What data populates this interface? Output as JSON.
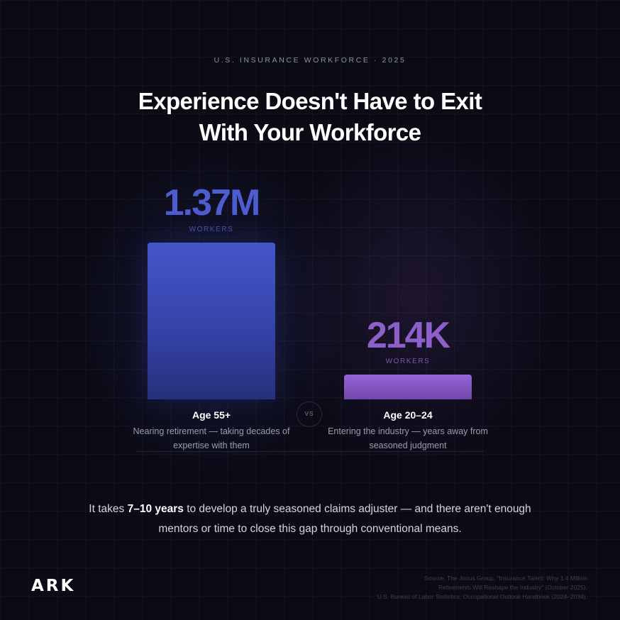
{
  "eyebrow": "U.S. INSURANCE WORKFORCE · 2025",
  "headline": {
    "line1": "Experience Doesn't Have to Exit",
    "line2": "With Your Workforce"
  },
  "vs_label": "VS",
  "chart_data": {
    "type": "bar",
    "categories": [
      "Age 55+",
      "Age 20–24"
    ],
    "values": [
      1370000,
      214000
    ],
    "value_labels": [
      "1.37M",
      "214K"
    ],
    "unit_label": "WORKERS",
    "descriptions": [
      "Nearing retirement — taking decades of expertise with them",
      "Entering the industry — years away from seasoned judgment"
    ],
    "colors": [
      "#4556c8",
      "#8c5fc9"
    ],
    "ylim": [
      0,
      1370000
    ],
    "grid": false
  },
  "takeaway": {
    "prefix": "It takes ",
    "highlight": "7–10 years",
    "suffix": " to develop a truly seasoned claims adjuster — and there aren't enough mentors or time to close this gap through conventional means."
  },
  "logo": "ARK",
  "source": {
    "line1": "Source: The Jonus Group, \"Insurance Talent: Why 1.4 Million",
    "line2": "Retirements Will Reshape the Industry\" (October 2025);",
    "line3": "U.S. Bureau of Labor Statistics, Occupational Outlook Handbook (2024–2034)."
  }
}
